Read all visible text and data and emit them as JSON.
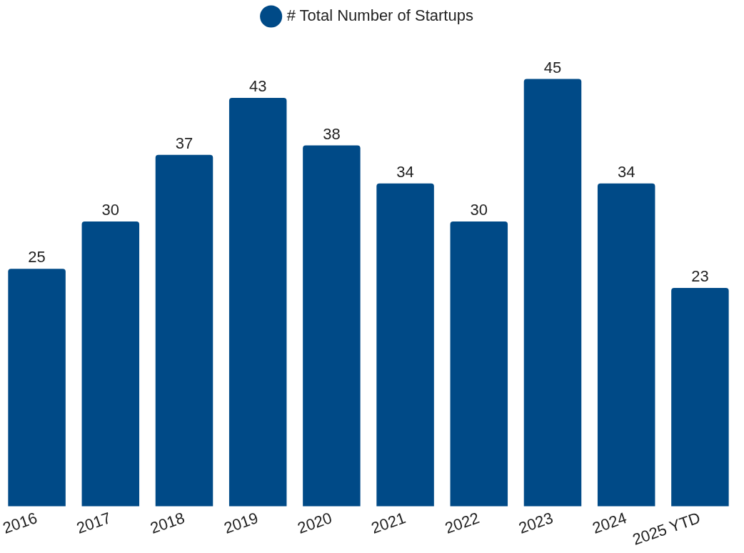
{
  "chart_data": {
    "type": "bar",
    "categories": [
      "2016",
      "2017",
      "2018",
      "2019",
      "2020",
      "2021",
      "2022",
      "2023",
      "2024",
      "2025 YTD"
    ],
    "series": [
      {
        "name": "# Total Number of Startups",
        "color": "#004a87",
        "values": [
          25,
          30,
          37,
          43,
          38,
          34,
          30,
          45,
          34,
          23
        ]
      }
    ],
    "data_labels": true,
    "legend": "top",
    "grid": false
  }
}
